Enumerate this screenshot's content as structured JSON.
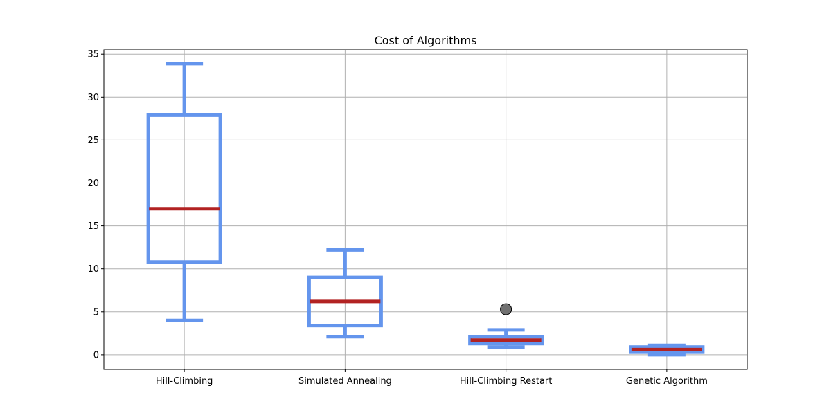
{
  "chart_data": {
    "type": "box",
    "title": "Cost of Algorithms",
    "xlabel": "",
    "ylabel": "",
    "ylim": [
      -1.7,
      35.5
    ],
    "yticks": [
      0,
      5,
      10,
      15,
      20,
      25,
      30,
      35
    ],
    "ytick_labels": [
      "0",
      "5",
      "10",
      "15",
      "20",
      "25",
      "30",
      "35"
    ],
    "grid": true,
    "categories": [
      "Hill-Climbing",
      "Simulated Annealing",
      "Hill-Climbing Restart",
      "Genetic Algorithm"
    ],
    "boxes": [
      {
        "whisker_low": 4.0,
        "q1": 10.8,
        "median": 17.0,
        "q3": 27.9,
        "whisker_high": 33.9,
        "outliers": []
      },
      {
        "whisker_low": 2.1,
        "q1": 3.4,
        "median": 6.2,
        "q3": 9.0,
        "whisker_high": 12.2,
        "outliers": []
      },
      {
        "whisker_low": 0.9,
        "q1": 1.3,
        "median": 1.7,
        "q3": 2.1,
        "whisker_high": 2.9,
        "outliers": [
          5.3
        ]
      },
      {
        "whisker_low": 0.0,
        "q1": 0.3,
        "median": 0.6,
        "q3": 0.9,
        "whisker_high": 1.1,
        "outliers": []
      }
    ],
    "colors": {
      "box": "#6495ed",
      "median": "#b22222",
      "outlier_fill": "#707070",
      "outlier_edge": "#000000"
    }
  }
}
